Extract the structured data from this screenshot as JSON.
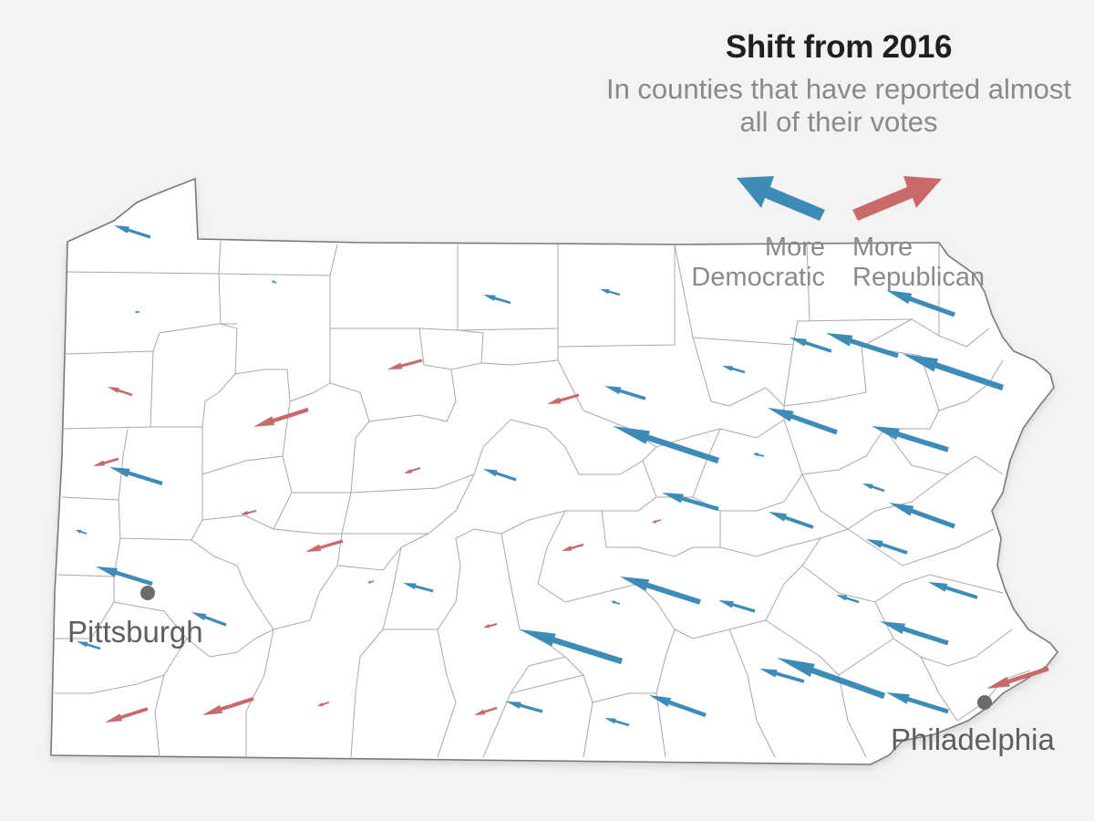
{
  "legend": {
    "title": "Shift from 2016",
    "subtitle": "In counties that have reported almost all of their votes",
    "dem_label_line1": "More",
    "dem_label_line2": "Democratic",
    "rep_label_line1": "More",
    "rep_label_line2": "Republican"
  },
  "cities": [
    {
      "name": "Pittsburgh"
    },
    {
      "name": "Philadelphia"
    }
  ],
  "colors": {
    "democratic": "#3d8cb7",
    "republican": "#c96a6a",
    "background": "#f3f3f3",
    "state_fill": "#ffffff"
  }
}
